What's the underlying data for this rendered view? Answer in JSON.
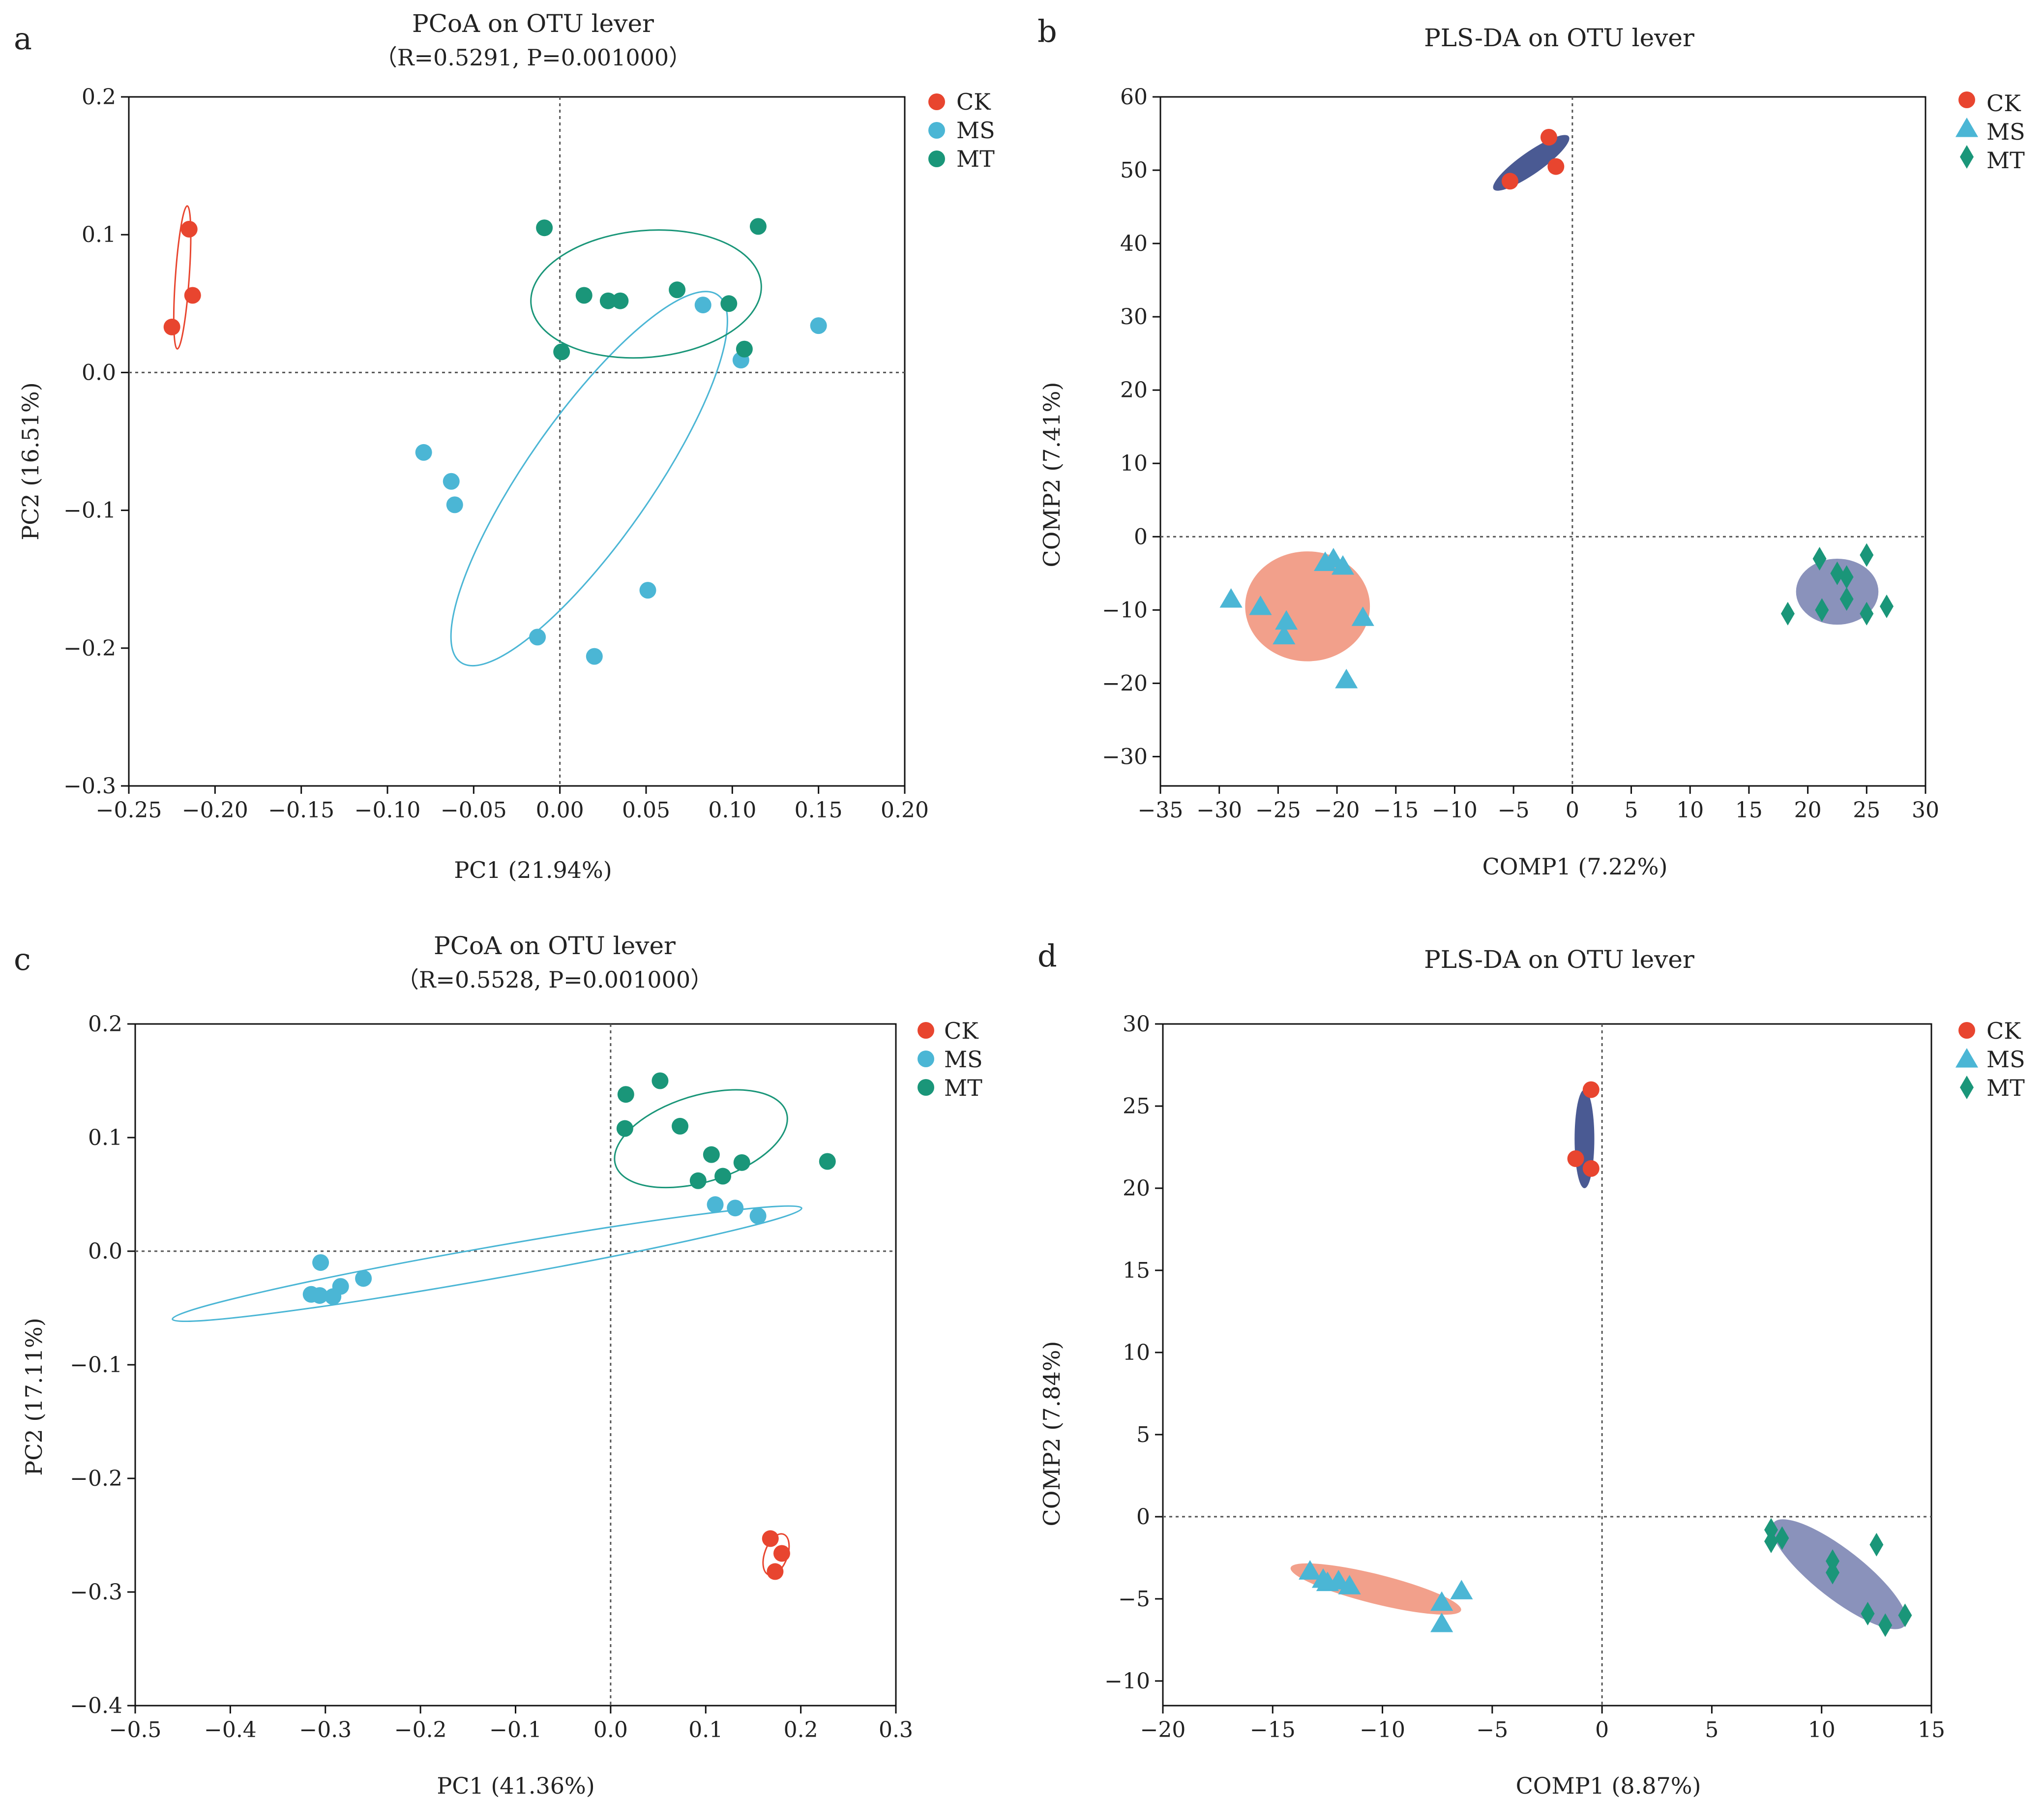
{
  "colors": {
    "CK": "#e8452f",
    "MS": "#4bb6d5",
    "MT": "#1a9679",
    "fill_blue": "#4a5a93",
    "fill_salmon": "#f2a08b",
    "fill_lavender": "#8a92bb"
  },
  "chart_data": [
    {
      "id": "a",
      "letter": "a",
      "type": "scatter",
      "title": "PCoA on OTU lever",
      "subtitle": "（R=0.5291, P=0.001000）",
      "xlabel": "PC1 (21.94%)",
      "ylabel": "PC2 (16.51%)",
      "xlim": [
        -0.25,
        0.2
      ],
      "ylim": [
        -0.3,
        0.2
      ],
      "xticks": [
        -0.25,
        -0.2,
        -0.15,
        -0.1,
        -0.05,
        0,
        0.05,
        0.1,
        0.15,
        0.2
      ],
      "xticklabels": [
        "−0.25",
        "−0.20",
        "−0.15",
        "−0.10",
        "−0.05",
        "0.00",
        "0.05",
        "0.10",
        "0.15",
        "0.20"
      ],
      "yticks": [
        -0.3,
        -0.2,
        -0.1,
        0,
        0.1,
        0.2
      ],
      "yticklabels": [
        "−0.3",
        "−0.2",
        "−0.1",
        "0.0",
        "0.1",
        "0.2"
      ],
      "legend": [
        {
          "name": "CK",
          "marker": "circle"
        },
        {
          "name": "MS",
          "marker": "circle"
        },
        {
          "name": "MT",
          "marker": "circle"
        }
      ],
      "ellipse_style": "outline",
      "series": [
        {
          "name": "CK",
          "marker": "circle",
          "points": [
            [
              -0.215,
              0.104
            ],
            [
              -0.213,
              0.056
            ],
            [
              -0.225,
              0.033
            ]
          ],
          "ellipse": {
            "cx": -0.219,
            "cy": 0.069,
            "rx": 0.004,
            "ry": 0.052,
            "angle": -86
          }
        },
        {
          "name": "MS",
          "marker": "circle",
          "points": [
            [
              -0.079,
              -0.058
            ],
            [
              -0.063,
              -0.079
            ],
            [
              -0.061,
              -0.096
            ],
            [
              -0.013,
              -0.192
            ],
            [
              0.02,
              -0.206
            ],
            [
              0.051,
              -0.158
            ],
            [
              0.083,
              0.049
            ],
            [
              0.105,
              0.009
            ],
            [
              0.15,
              0.034
            ]
          ],
          "ellipse": {
            "cx": 0.017,
            "cy": -0.077,
            "rx": 0.13,
            "ry": 0.045,
            "angle": -55
          }
        },
        {
          "name": "MT",
          "marker": "circle",
          "points": [
            [
              -0.009,
              0.105
            ],
            [
              0.115,
              0.106
            ],
            [
              0.014,
              0.056
            ],
            [
              0.028,
              0.052
            ],
            [
              0.035,
              0.052
            ],
            [
              0.068,
              0.06
            ],
            [
              0.098,
              0.05
            ],
            [
              0.107,
              0.017
            ],
            [
              0.001,
              0.015
            ]
          ],
          "ellipse": {
            "cx": 0.05,
            "cy": 0.057,
            "rx": 0.067,
            "ry": 0.046,
            "angle": -5
          }
        }
      ]
    },
    {
      "id": "b",
      "letter": "b",
      "type": "scatter",
      "title": "PLS-DA on OTU lever",
      "subtitle": "",
      "xlabel": "COMP1 (7.22%)",
      "ylabel": "COMP2 (7.41%)",
      "xlim": [
        -35,
        30
      ],
      "ylim": [
        -34,
        60
      ],
      "xticks": [
        -35,
        -30,
        -25,
        -20,
        -15,
        -10,
        -5,
        0,
        5,
        10,
        15,
        20,
        25,
        30
      ],
      "xticklabels": [
        "−35",
        "−30",
        "−25",
        "−20",
        "−15",
        "−10",
        "−5",
        "0",
        "5",
        "10",
        "15",
        "20",
        "25",
        "30"
      ],
      "yticks": [
        -30,
        -20,
        -10,
        0,
        10,
        20,
        30,
        40,
        50,
        60
      ],
      "yticklabels": [
        "−30",
        "−20",
        "−10",
        "0",
        "10",
        "20",
        "30",
        "40",
        "50",
        "60"
      ],
      "legend": [
        {
          "name": "CK",
          "marker": "circle"
        },
        {
          "name": "MS",
          "marker": "triangle"
        },
        {
          "name": "MT",
          "marker": "diamond"
        }
      ],
      "ellipse_style": "filled",
      "series": [
        {
          "name": "CK",
          "marker": "circle",
          "points": [
            [
              -5.3,
              48.5
            ],
            [
              -2.0,
              54.5
            ],
            [
              -1.4,
              50.5
            ]
          ],
          "ellipse": {
            "cx": -3.5,
            "cy": 51.0,
            "rx": 3.9,
            "ry": 1.5,
            "angle": 35,
            "fill": "fill_blue"
          }
        },
        {
          "name": "MS",
          "marker": "triangle",
          "points": [
            [
              -29.0,
              -8.5
            ],
            [
              -26.5,
              -9.5
            ],
            [
              -24.3,
              -11.5
            ],
            [
              -24.5,
              -13.5
            ],
            [
              -21.0,
              -3.5
            ],
            [
              -20.3,
              -3.0
            ],
            [
              -19.5,
              -4.0
            ],
            [
              -17.8,
              -11.0
            ],
            [
              -19.2,
              -19.5
            ]
          ],
          "ellipse": {
            "cx": -22.5,
            "cy": -9.5,
            "rx": 5.3,
            "ry": 7.5,
            "angle": 0,
            "fill": "fill_salmon"
          }
        },
        {
          "name": "MT",
          "marker": "diamond",
          "points": [
            [
              18.3,
              -10.5
            ],
            [
              21.0,
              -3.0
            ],
            [
              21.2,
              -10.0
            ],
            [
              22.5,
              -5.0
            ],
            [
              23.3,
              -5.5
            ],
            [
              23.3,
              -8.5
            ],
            [
              25.0,
              -2.5
            ],
            [
              25.0,
              -10.5
            ],
            [
              26.7,
              -9.5
            ]
          ],
          "ellipse": {
            "cx": 22.5,
            "cy": -7.5,
            "rx": 3.5,
            "ry": 4.5,
            "angle": 0,
            "fill": "fill_lavender"
          }
        }
      ]
    },
    {
      "id": "c",
      "letter": "c",
      "type": "scatter",
      "title": "PCoA on OTU lever",
      "subtitle": "（R=0.5528, P=0.001000）",
      "xlabel": "PC1 (41.36%)",
      "ylabel": "PC2 (17.11%)",
      "xlim": [
        -0.5,
        0.3
      ],
      "ylim": [
        -0.4,
        0.2
      ],
      "xticks": [
        -0.5,
        -0.4,
        -0.3,
        -0.2,
        -0.1,
        0,
        0.1,
        0.2,
        0.3
      ],
      "xticklabels": [
        "−0.5",
        "−0.4",
        "−0.3",
        "−0.2",
        "−0.1",
        "0.0",
        "0.1",
        "0.2",
        "0.3"
      ],
      "yticks": [
        -0.4,
        -0.3,
        -0.2,
        -0.1,
        0,
        0.1,
        0.2
      ],
      "yticklabels": [
        "−0.4",
        "−0.3",
        "−0.2",
        "−0.1",
        "0.0",
        "0.1",
        "0.2"
      ],
      "legend": [
        {
          "name": "CK",
          "marker": "circle"
        },
        {
          "name": "MS",
          "marker": "circle"
        },
        {
          "name": "MT",
          "marker": "circle"
        }
      ],
      "ellipse_style": "outline",
      "series": [
        {
          "name": "CK",
          "marker": "circle",
          "points": [
            [
              0.168,
              -0.253
            ],
            [
              0.18,
              -0.266
            ],
            [
              0.173,
              -0.282
            ]
          ],
          "ellipse": {
            "cx": 0.174,
            "cy": -0.267,
            "rx": 0.012,
            "ry": 0.019,
            "angle": -70
          }
        },
        {
          "name": "MS",
          "marker": "circle",
          "points": [
            [
              -0.305,
              -0.01
            ],
            [
              -0.315,
              -0.038
            ],
            [
              -0.306,
              -0.039
            ],
            [
              -0.292,
              -0.04
            ],
            [
              -0.284,
              -0.031
            ],
            [
              -0.26,
              -0.024
            ],
            [
              0.11,
              0.041
            ],
            [
              0.131,
              0.038
            ],
            [
              0.155,
              0.031
            ]
          ],
          "ellipse": {
            "cx": -0.13,
            "cy": -0.011,
            "rx": 0.336,
            "ry": 0.014,
            "angle": -10
          }
        },
        {
          "name": "MT",
          "marker": "circle",
          "points": [
            [
              0.016,
              0.138
            ],
            [
              0.052,
              0.15
            ],
            [
              0.015,
              0.108
            ],
            [
              0.073,
              0.11
            ],
            [
              0.106,
              0.085
            ],
            [
              0.138,
              0.078
            ],
            [
              0.118,
              0.066
            ],
            [
              0.092,
              0.062
            ],
            [
              0.228,
              0.079
            ]
          ],
          "ellipse": {
            "cx": 0.095,
            "cy": 0.099,
            "rx": 0.094,
            "ry": 0.038,
            "angle": -17
          }
        }
      ]
    },
    {
      "id": "d",
      "letter": "d",
      "type": "scatter",
      "title": "PLS-DA on OTU lever",
      "subtitle": "",
      "xlabel": "COMP1 (8.87%)",
      "ylabel": "COMP2 (7.84%)",
      "xlim": [
        -20,
        15
      ],
      "ylim": [
        -11.5,
        30
      ],
      "xticks": [
        -20,
        -15,
        -10,
        -5,
        0,
        5,
        10,
        15
      ],
      "xticklabels": [
        "−20",
        "−15",
        "−10",
        "−5",
        "0",
        "5",
        "10",
        "15"
      ],
      "yticks": [
        -10,
        -5,
        0,
        5,
        10,
        15,
        20,
        25,
        30
      ],
      "yticklabels": [
        "−10",
        "−5",
        "0",
        "5",
        "10",
        "15",
        "20",
        "25",
        "30"
      ],
      "legend": [
        {
          "name": "CK",
          "marker": "circle"
        },
        {
          "name": "MS",
          "marker": "triangle"
        },
        {
          "name": "MT",
          "marker": "diamond"
        }
      ],
      "ellipse_style": "filled",
      "series": [
        {
          "name": "CK",
          "marker": "circle",
          "points": [
            [
              -0.5,
              26.0
            ],
            [
              -1.2,
              21.8
            ],
            [
              -0.5,
              21.2
            ]
          ],
          "ellipse": {
            "cx": -0.8,
            "cy": 23.0,
            "rx": 0.45,
            "ry": 3.0,
            "angle": 0,
            "fill": "fill_blue"
          }
        },
        {
          "name": "MS",
          "marker": "triangle",
          "points": [
            [
              -13.3,
              -3.3
            ],
            [
              -12.7,
              -3.8
            ],
            [
              -12.5,
              -4.0
            ],
            [
              -12.0,
              -3.9
            ],
            [
              -11.5,
              -4.2
            ],
            [
              -7.3,
              -5.2
            ],
            [
              -6.4,
              -4.5
            ],
            [
              -7.3,
              -6.5
            ]
          ],
          "ellipse": {
            "cx": -10.3,
            "cy": -4.4,
            "rx": 4.0,
            "ry": 0.9,
            "angle": -14,
            "fill": "fill_salmon"
          }
        },
        {
          "name": "MT",
          "marker": "diamond",
          "points": [
            [
              7.7,
              -1.5
            ],
            [
              7.7,
              -0.8
            ],
            [
              8.2,
              -1.3
            ],
            [
              10.5,
              -2.7
            ],
            [
              10.5,
              -3.4
            ],
            [
              12.1,
              -5.9
            ],
            [
              12.5,
              -1.7
            ],
            [
              12.9,
              -6.6
            ],
            [
              13.8,
              -6.0
            ]
          ],
          "ellipse": {
            "cx": 10.8,
            "cy": -3.5,
            "rx": 3.8,
            "ry": 1.5,
            "angle": -38,
            "fill": "fill_lavender"
          }
        }
      ]
    }
  ]
}
